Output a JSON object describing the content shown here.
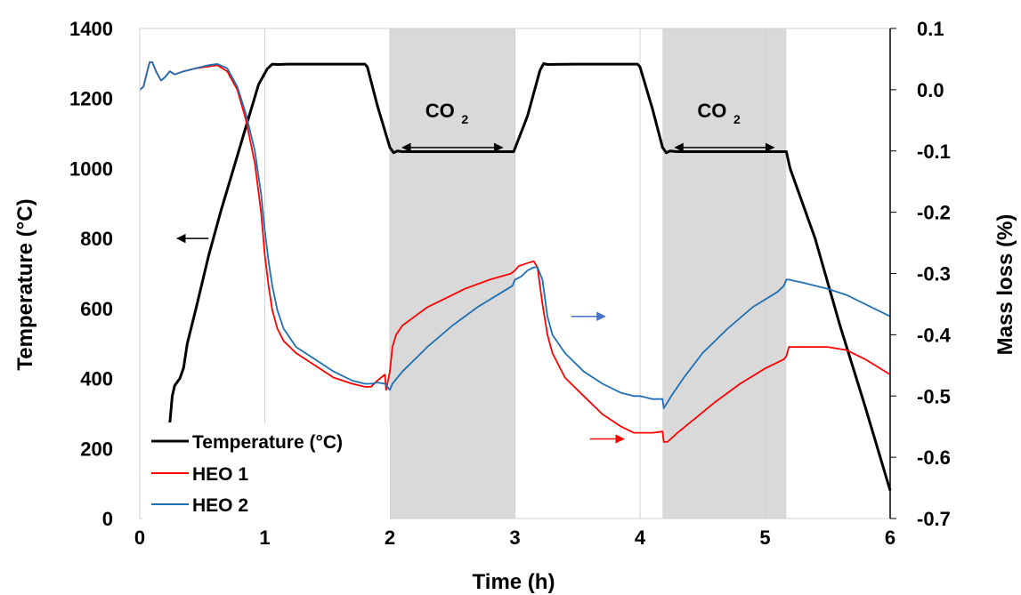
{
  "chart_data": {
    "type": "line",
    "xlabel": "Time (h)",
    "ylabel": "Temperature (°C)",
    "y2label": "Mass loss (%)",
    "xlim": [
      0,
      6
    ],
    "ylim": [
      0,
      1400
    ],
    "y2lim": [
      -0.7,
      0.1
    ],
    "x_ticks": [
      "0",
      "1",
      "2",
      "3",
      "4",
      "5",
      "6"
    ],
    "y_ticks": [
      "0",
      "200",
      "400",
      "600",
      "800",
      "1000",
      "1200",
      "1400"
    ],
    "y2_ticks": [
      "-0.7",
      "-0.6",
      "-0.5",
      "-0.4",
      "-0.3",
      "-0.2",
      "-0.1",
      "0.0",
      "0.1"
    ],
    "grid": "vertical",
    "legend_position": "bottom-left",
    "shaded_regions": [
      {
        "x": [
          2.0,
          3.0
        ],
        "label_main": "CO",
        "label_sub": "2"
      },
      {
        "x": [
          4.18,
          5.17
        ],
        "label_main": "CO",
        "label_sub": "2"
      }
    ],
    "series": [
      {
        "name": "Temperature (°C)",
        "axis": "left",
        "color": "#000000",
        "x": [
          0.24,
          0.26,
          0.28,
          0.32,
          0.35,
          0.38,
          0.45,
          0.55,
          0.65,
          0.75,
          0.85,
          0.95,
          1.02,
          1.06,
          1.1,
          1.2,
          1.4,
          1.6,
          1.8,
          1.82,
          1.9,
          2.0,
          2.03,
          2.06,
          2.1,
          2.5,
          2.9,
          2.99,
          3.1,
          3.2,
          3.23,
          3.26,
          3.5,
          3.98,
          4.0,
          4.1,
          4.18,
          4.21,
          4.24,
          4.3,
          4.7,
          5.1,
          5.17,
          5.2,
          5.4,
          5.6,
          5.8,
          6.0
        ],
        "y": [
          270,
          350,
          380,
          400,
          430,
          500,
          600,
          750,
          880,
          1000,
          1120,
          1240,
          1285,
          1298,
          1297,
          1298,
          1298,
          1298,
          1298,
          1290,
          1180,
          1060,
          1045,
          1050,
          1048,
          1048,
          1048,
          1048,
          1150,
          1280,
          1300,
          1297,
          1298,
          1298,
          1290,
          1170,
          1060,
          1045,
          1050,
          1048,
          1048,
          1048,
          1048,
          1000,
          800,
          550,
          320,
          80
        ]
      },
      {
        "name": "HEO 1",
        "axis": "right",
        "color": "#ff0000",
        "x": [
          0.0,
          0.03,
          0.06,
          0.08,
          0.1,
          0.13,
          0.17,
          0.2,
          0.24,
          0.28,
          0.35,
          0.45,
          0.55,
          0.62,
          0.7,
          0.78,
          0.85,
          0.92,
          0.97,
          1.0,
          1.03,
          1.06,
          1.1,
          1.15,
          1.25,
          1.4,
          1.55,
          1.7,
          1.8,
          1.85,
          1.9,
          1.96,
          1.97,
          2.0,
          2.02,
          2.05,
          2.1,
          2.2,
          2.3,
          2.45,
          2.6,
          2.8,
          2.97,
          3.0,
          3.03,
          3.1,
          3.15,
          3.18,
          3.22,
          3.26,
          3.3,
          3.4,
          3.55,
          3.7,
          3.85,
          3.95,
          4.0,
          4.1,
          4.18,
          4.19,
          4.22,
          4.3,
          4.45,
          4.6,
          4.8,
          5.0,
          5.15,
          5.17,
          5.19,
          5.3,
          5.5,
          5.65,
          5.8,
          6.0
        ],
        "y": [
          0.0,
          0.005,
          0.03,
          0.045,
          0.045,
          0.03,
          0.015,
          0.02,
          0.03,
          0.025,
          0.03,
          0.035,
          0.038,
          0.04,
          0.03,
          0.0,
          -0.05,
          -0.12,
          -0.2,
          -0.27,
          -0.32,
          -0.36,
          -0.39,
          -0.41,
          -0.43,
          -0.45,
          -0.47,
          -0.48,
          -0.485,
          -0.485,
          -0.475,
          -0.465,
          -0.49,
          -0.46,
          -0.42,
          -0.4,
          -0.385,
          -0.37,
          -0.355,
          -0.34,
          -0.325,
          -0.31,
          -0.3,
          -0.295,
          -0.288,
          -0.283,
          -0.28,
          -0.29,
          -0.35,
          -0.4,
          -0.43,
          -0.47,
          -0.5,
          -0.53,
          -0.55,
          -0.56,
          -0.56,
          -0.56,
          -0.558,
          -0.575,
          -0.575,
          -0.56,
          -0.535,
          -0.51,
          -0.48,
          -0.455,
          -0.44,
          -0.435,
          -0.42,
          -0.42,
          -0.42,
          -0.425,
          -0.44,
          -0.465
        ]
      },
      {
        "name": "HEO 2",
        "axis": "right",
        "color": "#1f6fb4",
        "x": [
          0.0,
          0.03,
          0.06,
          0.08,
          0.1,
          0.13,
          0.17,
          0.2,
          0.24,
          0.28,
          0.35,
          0.45,
          0.55,
          0.62,
          0.7,
          0.78,
          0.85,
          0.92,
          0.97,
          1.0,
          1.03,
          1.06,
          1.1,
          1.15,
          1.25,
          1.4,
          1.55,
          1.7,
          1.8,
          1.85,
          1.9,
          1.96,
          2.0,
          2.02,
          2.1,
          2.3,
          2.5,
          2.7,
          2.9,
          2.98,
          3.0,
          3.05,
          3.1,
          3.15,
          3.18,
          3.22,
          3.26,
          3.3,
          3.4,
          3.55,
          3.7,
          3.85,
          3.95,
          4.0,
          4.1,
          4.18,
          4.19,
          4.25,
          4.35,
          4.5,
          4.7,
          4.9,
          5.1,
          5.15,
          5.17,
          5.19,
          5.3,
          5.5,
          5.65,
          5.8,
          6.0
        ],
        "y": [
          0.0,
          0.005,
          0.03,
          0.045,
          0.045,
          0.03,
          0.015,
          0.02,
          0.03,
          0.025,
          0.03,
          0.035,
          0.04,
          0.042,
          0.035,
          0.005,
          -0.04,
          -0.1,
          -0.17,
          -0.23,
          -0.28,
          -0.32,
          -0.36,
          -0.39,
          -0.42,
          -0.44,
          -0.46,
          -0.475,
          -0.48,
          -0.48,
          -0.478,
          -0.48,
          -0.49,
          -0.48,
          -0.46,
          -0.42,
          -0.385,
          -0.355,
          -0.33,
          -0.32,
          -0.31,
          -0.305,
          -0.295,
          -0.29,
          -0.29,
          -0.31,
          -0.37,
          -0.4,
          -0.43,
          -0.46,
          -0.48,
          -0.495,
          -0.5,
          -0.5,
          -0.505,
          -0.505,
          -0.52,
          -0.5,
          -0.47,
          -0.43,
          -0.39,
          -0.355,
          -0.33,
          -0.32,
          -0.31,
          -0.31,
          -0.315,
          -0.325,
          -0.335,
          -0.35,
          -0.37
        ]
      }
    ],
    "annotations": [
      {
        "type": "arrow",
        "x_from": 0.55,
        "x_to": 0.3,
        "y": 800,
        "axis": "left",
        "color": "#000000"
      },
      {
        "type": "arrow",
        "x_from": 3.45,
        "x_to": 3.72,
        "y": -0.37,
        "axis": "right",
        "color": "#1f6fb4"
      },
      {
        "type": "arrow",
        "x_from": 3.6,
        "x_to": 3.87,
        "y": -0.57,
        "axis": "right",
        "color": "#ff0000"
      },
      {
        "type": "double-arrow",
        "x_from": 2.1,
        "x_to": 2.9,
        "y": 1060,
        "axis": "left",
        "color": "#000000"
      },
      {
        "type": "double-arrow",
        "x_from": 4.28,
        "x_to": 5.07,
        "y": 1060,
        "axis": "left",
        "color": "#000000"
      }
    ]
  }
}
